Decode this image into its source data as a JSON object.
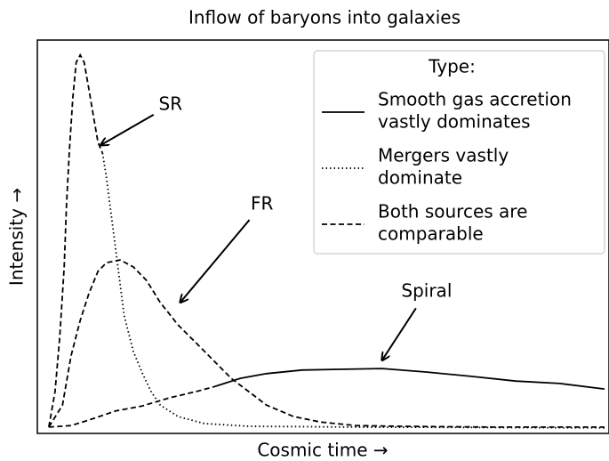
{
  "chart_data": {
    "type": "line",
    "title": "Inflow of baryons into galaxies",
    "xlabel": "Cosmic time →",
    "ylabel": "Intensity →",
    "xlim": [
      0,
      100
    ],
    "ylim": [
      0,
      100
    ],
    "color": "#000000",
    "legend": {
      "title": "Type:",
      "corner": "upper right",
      "entries": [
        {
          "label": [
            "Smooth gas accretion",
            "vastly dominates"
          ],
          "style": "solid"
        },
        {
          "label": [
            "Mergers vastly",
            "dominate"
          ],
          "style": "dotted"
        },
        {
          "label": [
            "Both sources are",
            "comparable"
          ],
          "style": "dashed"
        }
      ]
    },
    "series": [
      {
        "pieces": [
          {
            "style": "dashed",
            "x": [
              2.0,
              3.1,
              3.9,
              4.7,
              5.1,
              5.6,
              6.2,
              6.8,
              7.5,
              8.2,
              9.0,
              9.8,
              10.6,
              11.4
            ],
            "values": [
              1.6,
              10.6,
              24.2,
              42.3,
              58.1,
              71.7,
              85.3,
              94.3,
              96.2,
              94.3,
              87.6,
              80.8,
              74.0,
              71.3
            ]
          },
          {
            "style": "dotted",
            "x": [
              11.4,
              12.1,
              12.9,
              13.7,
              14.5,
              15.2,
              16.8,
              18.4,
              19.9,
              21.5,
              24.6,
              29.2,
              37.0,
              55.7,
              99.2
            ],
            "values": [
              71.3,
              64.9,
              55.9,
              46.8,
              37.8,
              29.9,
              20.8,
              15.2,
              10.6,
              7.2,
              4.3,
              2.5,
              1.8,
              1.6,
              1.4
            ]
          }
        ]
      },
      {
        "pieces": [
          {
            "style": "dashed",
            "x": [
              2.0,
              4.4,
              5.9,
              7.5,
              9.0,
              10.6,
              12.1,
              14.5,
              16.8,
              19.1,
              21.5,
              24.6,
              27.7,
              30.8,
              33.9,
              37.0,
              40.1,
              44.8,
              49.5,
              55.7,
              63.5,
              79.0,
              99.2
            ],
            "values": [
              1.6,
              7.2,
              19.7,
              28.7,
              35.5,
              41.2,
              43.4,
              44.1,
              42.3,
              38.9,
              33.3,
              27.6,
              23.1,
              18.6,
              14.0,
              10.6,
              7.2,
              4.3,
              2.9,
              2.0,
              1.8,
              1.6,
              1.6
            ]
          }
        ]
      },
      {
        "pieces": [
          {
            "style": "dashed",
            "x": [
              2.0,
              5.9,
              9.0,
              13.7,
              18.4,
              23.0,
              27.7,
              30.8
            ],
            "values": [
              1.6,
              2.0,
              3.4,
              5.7,
              7.0,
              9.0,
              10.6,
              11.8
            ]
          },
          {
            "style": "solid",
            "x": [
              30.8,
              35.5,
              40.1,
              46.3,
              52.6,
              60.3,
              68.0,
              75.9,
              83.7,
              91.4,
              99.2
            ],
            "values": [
              11.8,
              14.0,
              15.2,
              16.1,
              16.3,
              16.5,
              15.6,
              14.5,
              13.3,
              12.7,
              11.3
            ]
          }
        ]
      }
    ],
    "annotations": [
      {
        "text": "SR",
        "text_xy": [
          23.3,
          83.5
        ],
        "xy": [
          11.1,
          73.3
        ]
      },
      {
        "text": "FR",
        "text_xy": [
          39.3,
          58.1
        ],
        "xy": [
          25.0,
          33.3
        ]
      },
      {
        "text": "Spiral",
        "text_xy": [
          68.1,
          36.0
        ],
        "xy": [
          60.3,
          18.6
        ]
      }
    ]
  }
}
